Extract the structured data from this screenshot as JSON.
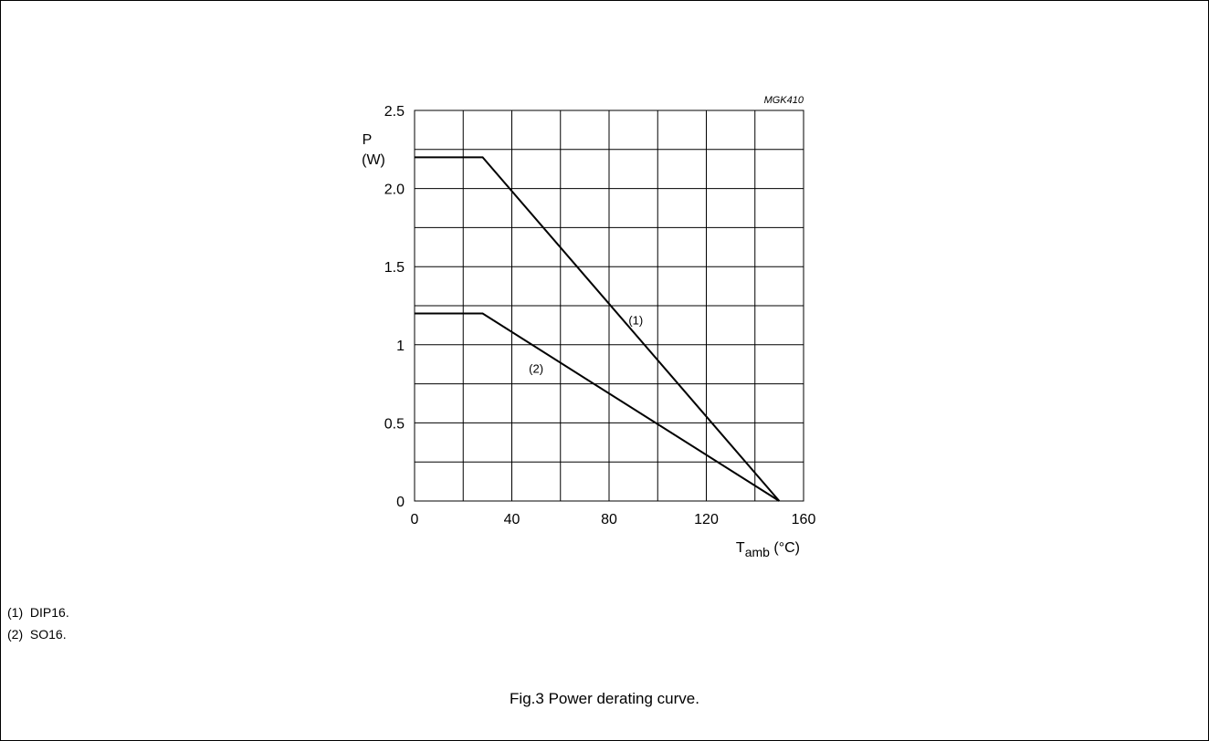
{
  "chart_data": {
    "type": "line",
    "figure_code": "MGK410",
    "ylabel_symbol": "P",
    "ylabel_unit": "(W)",
    "xlabel_main": "T",
    "xlabel_sub": "amb",
    "xlabel_unit": "(°C)",
    "xlim": [
      0,
      160
    ],
    "ylim": [
      0,
      2.5
    ],
    "x_ticks": [
      {
        "value": 0,
        "label": "0"
      },
      {
        "value": 40,
        "label": "40"
      },
      {
        "value": 80,
        "label": "80"
      },
      {
        "value": 120,
        "label": "120"
      },
      {
        "value": 160,
        "label": "160"
      }
    ],
    "y_ticks": [
      {
        "value": 0,
        "label": "0"
      },
      {
        "value": 0.5,
        "label": "0.5"
      },
      {
        "value": 1,
        "label": "1"
      },
      {
        "value": 1.5,
        "label": "1.5"
      },
      {
        "value": 2,
        "label": "2.0"
      },
      {
        "value": 2.5,
        "label": "2.5"
      }
    ],
    "grid": {
      "x_step": 20,
      "y_step": 0.25
    },
    "series": [
      {
        "label": "(1)",
        "points": [
          [
            0,
            2.2
          ],
          [
            28,
            2.2
          ],
          [
            150,
            0
          ]
        ],
        "label_at": [
          91,
          1.13
        ]
      },
      {
        "label": "(2)",
        "points": [
          [
            0,
            1.2
          ],
          [
            28,
            1.2
          ],
          [
            150,
            0
          ]
        ],
        "label_at": [
          50,
          0.82
        ]
      }
    ]
  },
  "notes": [
    {
      "num": "(1)",
      "text": "DIP16."
    },
    {
      "num": "(2)",
      "text": "SO16."
    }
  ],
  "caption": "Fig.3  Power derating curve."
}
